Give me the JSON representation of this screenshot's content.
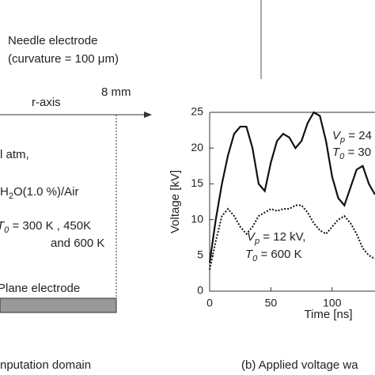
{
  "diagram": {
    "needle": "Needle electrode",
    "curvature": "(curvature = 100 μm)",
    "distance": "8 mm",
    "axis": "r-axis",
    "pressure": "l atm,",
    "gas": [
      "H",
      "2",
      "O(1.0 %)/Air"
    ],
    "temp": [
      "T",
      "0",
      " = 300 K , 450K"
    ],
    "temp2": "and 600 K",
    "plane": "Plane electrode",
    "caption": "nputation domain"
  },
  "chart_data": {
    "type": "line",
    "caption": "(b) Applied voltage wa",
    "xlabel": "Time [ns]",
    "ylabel": "Voltage [kV]",
    "x": [
      0,
      5,
      10,
      15,
      20,
      25,
      30,
      35,
      40,
      45,
      50,
      55,
      60,
      65,
      70,
      75,
      80,
      85,
      90,
      95,
      100,
      105,
      110,
      115,
      120,
      125,
      130,
      135
    ],
    "series": [
      {
        "color": "#111",
        "dash": "none",
        "values": [
          4,
          10,
          15,
          19,
          22,
          23,
          23,
          20,
          15,
          14,
          18,
          21,
          22,
          21.5,
          20,
          21,
          23.5,
          25,
          24.5,
          21,
          16,
          13,
          12,
          14.5,
          17,
          17.5,
          15,
          13.5
        ]
      },
      {
        "color": "#111",
        "dash": "2 2",
        "values": [
          3,
          7,
          10.5,
          11.5,
          10.5,
          9,
          8,
          9,
          10.5,
          11,
          11.5,
          11.2,
          11.5,
          11.5,
          12,
          12,
          11,
          9.5,
          8.5,
          8,
          9,
          10,
          10.5,
          9.5,
          8,
          6,
          5,
          4.5
        ]
      }
    ],
    "annotations": [
      {
        "symbol": "V",
        "sub": "p",
        "text": " = 24"
      },
      {
        "symbol": "T",
        "sub": "0",
        "text": " = 30"
      },
      {
        "symbol": "V",
        "sub": "p",
        "text": " = 12 kV,"
      },
      {
        "symbol": "T",
        "sub": "0",
        "text": " = 600 K"
      }
    ],
    "xlim": [
      0,
      135
    ],
    "ylim": [
      0,
      25
    ],
    "xticks": [
      0,
      50,
      100
    ],
    "yticks": [
      0,
      5,
      10,
      15,
      20,
      25
    ]
  }
}
